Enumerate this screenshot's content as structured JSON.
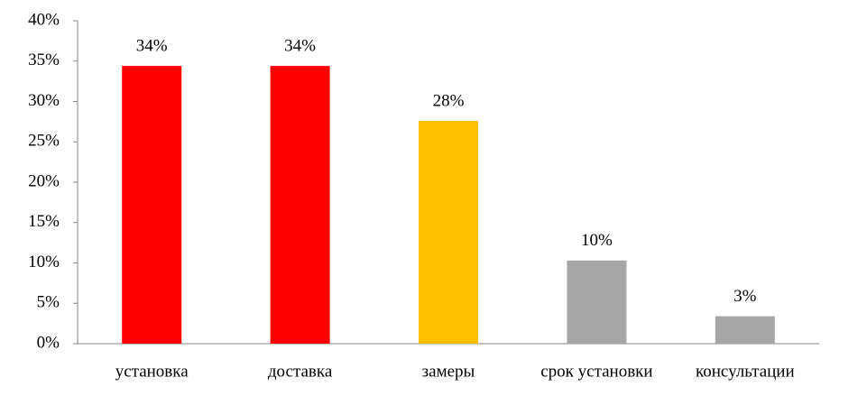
{
  "chart_data": {
    "type": "bar",
    "categories": [
      "установка",
      "доставка",
      "замеры",
      "срок установки",
      "консультации"
    ],
    "values": [
      34.4,
      34.4,
      27.6,
      10.3,
      3.4
    ],
    "value_labels": [
      "34%",
      "34%",
      "28%",
      "10%",
      "3%"
    ],
    "colors": [
      "#ff0000",
      "#ff0000",
      "#ffc000",
      "#a6a6a6",
      "#a6a6a6"
    ],
    "ylim": [
      0,
      40
    ],
    "yticks": [
      {
        "value": 0,
        "label": "0%"
      },
      {
        "value": 5,
        "label": "5%"
      },
      {
        "value": 10,
        "label": "10%"
      },
      {
        "value": 15,
        "label": "15%"
      },
      {
        "value": 20,
        "label": "20%"
      },
      {
        "value": 25,
        "label": "25%"
      },
      {
        "value": 30,
        "label": "30%"
      },
      {
        "value": 35,
        "label": "35%"
      },
      {
        "value": 40,
        "label": "40%"
      }
    ],
    "grid": false
  }
}
